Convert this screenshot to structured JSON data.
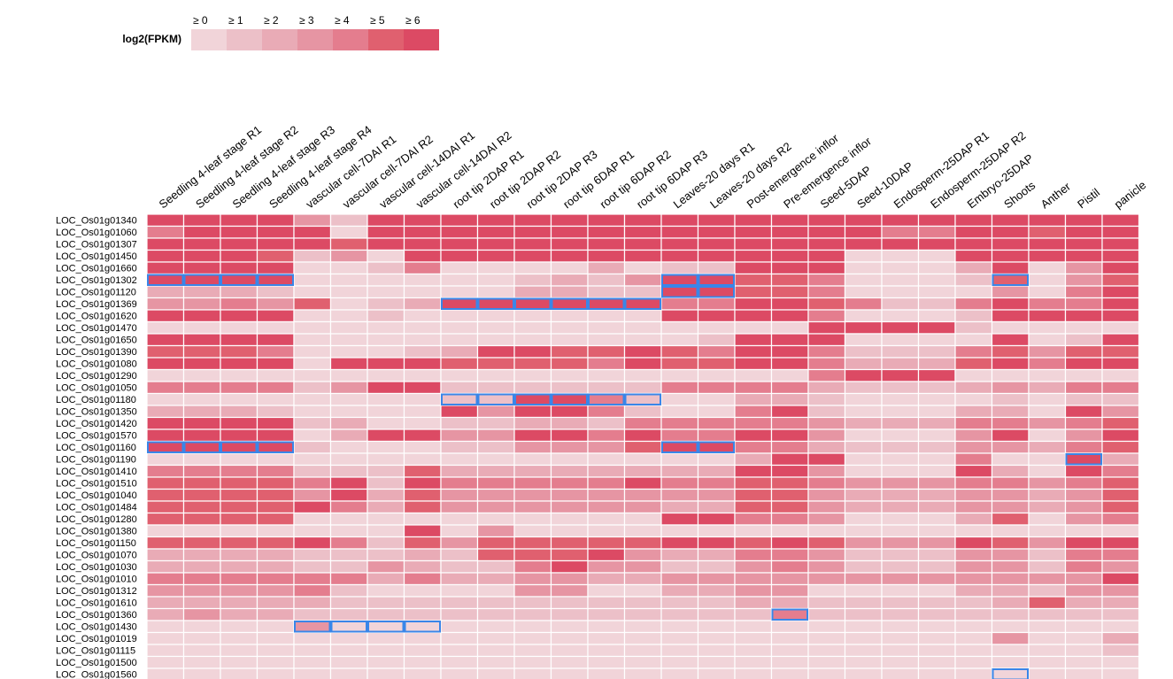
{
  "chart_data": {
    "type": "heatmap",
    "legend": {
      "title": "log2(FPKM)",
      "bins": [
        "≥ 0",
        "≥ 1",
        "≥ 2",
        "≥ 3",
        "≥ 4",
        "≥ 5",
        "≥ 6"
      ],
      "colors": [
        "#f1d4d9",
        "#ecc0c8",
        "#e9abb6",
        "#e695a3",
        "#e47d8e",
        "#e0606f",
        "#dc4a64"
      ]
    },
    "columns": [
      "Seedling 4-leaf stage R1",
      "Seedling 4-leaf stage R2",
      "Seedling 4-leaf stage R3",
      "Seedling 4-leaf stage R4",
      "vascular cell-7DAI R1",
      "vascular cell-7DAI R2",
      "vascular cell-14DAI R1",
      "vascular cell-14DAI R2",
      "root tip 2DAP R1",
      "root tip 2DAP R2",
      "root tip 2DAP R3",
      "root tip 6DAP R1",
      "root tip 6DAP R2",
      "root tip 6DAP R3",
      "Leaves-20 days R1",
      "Leaves-20 days R2",
      "Post-emergence inflor",
      "Pre-emergence inflor",
      "Seed-5DAP",
      "Seed-10DAP",
      "Endosperm-25DAP R1",
      "Endosperm-25DAP R2",
      "Embryo-25DAP",
      "Shoots",
      "Anther",
      "Pistil",
      "panicle"
    ],
    "rows": [
      {
        "gene": "LOC_Os01g01340",
        "levels": [
          6,
          6,
          6,
          6,
          3,
          1,
          6,
          6,
          6,
          6,
          6,
          6,
          6,
          6,
          6,
          6,
          6,
          6,
          6,
          6,
          6,
          6,
          6,
          6,
          6,
          6,
          6
        ]
      },
      {
        "gene": "LOC_Os01g01060",
        "levels": [
          4,
          6,
          6,
          6,
          6,
          0,
          6,
          6,
          6,
          6,
          6,
          6,
          6,
          6,
          6,
          6,
          6,
          6,
          6,
          6,
          4,
          4,
          6,
          6,
          5,
          6,
          6
        ]
      },
      {
        "gene": "LOC_Os01g01307",
        "levels": [
          6,
          6,
          6,
          6,
          6,
          5,
          6,
          6,
          6,
          6,
          6,
          6,
          6,
          6,
          6,
          6,
          6,
          6,
          6,
          6,
          6,
          6,
          6,
          6,
          6,
          6,
          6
        ]
      },
      {
        "gene": "LOC_Os01g01450",
        "levels": [
          6,
          6,
          6,
          5,
          1,
          3,
          0,
          6,
          6,
          6,
          6,
          6,
          6,
          6,
          6,
          6,
          6,
          6,
          6,
          0,
          0,
          0,
          6,
          6,
          6,
          6,
          6
        ]
      },
      {
        "gene": "LOC_Os01g01660",
        "levels": [
          6,
          6,
          6,
          6,
          0,
          0,
          1,
          4,
          0,
          0,
          0,
          0,
          2,
          0,
          1,
          1,
          6,
          6,
          6,
          0,
          0,
          0,
          2,
          6,
          0,
          3,
          6
        ]
      },
      {
        "gene": "LOC_Os01g01302",
        "levels": [
          6,
          6,
          6,
          6,
          0,
          0,
          0,
          0,
          0,
          0,
          1,
          2,
          1,
          3,
          6,
          6,
          5,
          5,
          4,
          0,
          0,
          0,
          1,
          5,
          0,
          3,
          5
        ]
      },
      {
        "gene": "LOC_Os01g01120",
        "levels": [
          2,
          2,
          2,
          1,
          0,
          0,
          0,
          0,
          0,
          0,
          2,
          2,
          1,
          1,
          6,
          6,
          5,
          5,
          4,
          0,
          0,
          0,
          0,
          3,
          0,
          4,
          6
        ]
      },
      {
        "gene": "LOC_Os01g01369",
        "levels": [
          3,
          3,
          4,
          3,
          5,
          0,
          1,
          2,
          6,
          6,
          6,
          6,
          6,
          6,
          4,
          4,
          6,
          6,
          5,
          4,
          1,
          1,
          4,
          6,
          4,
          4,
          6
        ]
      },
      {
        "gene": "LOC_Os01g01620",
        "levels": [
          6,
          6,
          6,
          6,
          0,
          0,
          1,
          0,
          0,
          0,
          0,
          0,
          0,
          0,
          6,
          6,
          6,
          6,
          4,
          0,
          0,
          0,
          1,
          6,
          6,
          6,
          6
        ]
      },
      {
        "gene": "LOC_Os01g01470",
        "levels": [
          0,
          0,
          0,
          0,
          0,
          0,
          0,
          0,
          0,
          0,
          0,
          0,
          0,
          0,
          0,
          0,
          0,
          0,
          6,
          6,
          6,
          6,
          1,
          0,
          0,
          0,
          0
        ]
      },
      {
        "gene": "LOC_Os01g01650",
        "levels": [
          6,
          6,
          6,
          6,
          0,
          0,
          0,
          0,
          0,
          0,
          0,
          0,
          0,
          0,
          0,
          1,
          6,
          6,
          6,
          0,
          0,
          0,
          0,
          6,
          0,
          1,
          6
        ]
      },
      {
        "gene": "LOC_Os01g01390",
        "levels": [
          5,
          5,
          5,
          4,
          0,
          0,
          0,
          1,
          2,
          6,
          6,
          5,
          5,
          6,
          5,
          4,
          6,
          6,
          4,
          1,
          1,
          1,
          4,
          5,
          3,
          5,
          5
        ]
      },
      {
        "gene": "LOC_Os01g01080",
        "levels": [
          6,
          6,
          6,
          6,
          0,
          6,
          6,
          6,
          5,
          5,
          5,
          5,
          4,
          6,
          5,
          5,
          6,
          6,
          4,
          2,
          2,
          2,
          5,
          6,
          4,
          6,
          6
        ]
      },
      {
        "gene": "LOC_Os01g01290",
        "levels": [
          0,
          0,
          0,
          0,
          0,
          0,
          0,
          0,
          0,
          0,
          0,
          0,
          0,
          0,
          0,
          0,
          0,
          0,
          4,
          6,
          6,
          6,
          0,
          0,
          0,
          0,
          0
        ]
      },
      {
        "gene": "LOC_Os01g01050",
        "levels": [
          4,
          4,
          4,
          4,
          1,
          3,
          6,
          6,
          1,
          1,
          1,
          1,
          1,
          1,
          4,
          4,
          4,
          4,
          2,
          1,
          1,
          1,
          2,
          3,
          2,
          4,
          4
        ]
      },
      {
        "gene": "LOC_Os01g01180",
        "levels": [
          0,
          0,
          0,
          0,
          0,
          0,
          0,
          0,
          1,
          1,
          6,
          6,
          4,
          1,
          0,
          0,
          2,
          2,
          1,
          0,
          0,
          0,
          0,
          1,
          0,
          1,
          1
        ]
      },
      {
        "gene": "LOC_Os01g01350",
        "levels": [
          2,
          2,
          2,
          1,
          0,
          0,
          0,
          0,
          6,
          3,
          6,
          6,
          4,
          1,
          0,
          0,
          4,
          6,
          1,
          0,
          0,
          0,
          2,
          2,
          0,
          6,
          3
        ]
      },
      {
        "gene": "LOC_Os01g01420",
        "levels": [
          6,
          6,
          6,
          6,
          1,
          2,
          0,
          0,
          1,
          1,
          2,
          2,
          1,
          4,
          4,
          4,
          4,
          4,
          3,
          2,
          2,
          2,
          4,
          4,
          3,
          4,
          5
        ]
      },
      {
        "gene": "LOC_Os01g01570",
        "levels": [
          6,
          6,
          6,
          6,
          0,
          2,
          6,
          6,
          3,
          3,
          6,
          6,
          4,
          6,
          4,
          4,
          6,
          6,
          3,
          0,
          0,
          0,
          3,
          6,
          0,
          3,
          6
        ]
      },
      {
        "gene": "LOC_Os01g01160",
        "levels": [
          6,
          6,
          6,
          6,
          1,
          0,
          0,
          0,
          1,
          1,
          3,
          3,
          3,
          5,
          6,
          6,
          4,
          4,
          2,
          1,
          1,
          1,
          3,
          3,
          2,
          4,
          5
        ]
      },
      {
        "gene": "LOC_Os01g01190",
        "levels": [
          0,
          0,
          0,
          0,
          0,
          0,
          0,
          0,
          0,
          0,
          0,
          0,
          0,
          0,
          0,
          0,
          2,
          6,
          6,
          0,
          0,
          0,
          4,
          0,
          0,
          6,
          2
        ]
      },
      {
        "gene": "LOC_Os01g01410",
        "levels": [
          4,
          4,
          4,
          4,
          1,
          1,
          1,
          5,
          2,
          2,
          2,
          2,
          2,
          2,
          2,
          2,
          6,
          6,
          3,
          0,
          0,
          0,
          6,
          2,
          0,
          6,
          4
        ]
      },
      {
        "gene": "LOC_Os01g01510",
        "levels": [
          5,
          5,
          5,
          5,
          4,
          6,
          1,
          6,
          4,
          4,
          4,
          4,
          4,
          6,
          4,
          4,
          5,
          5,
          4,
          3,
          3,
          3,
          4,
          4,
          3,
          4,
          5
        ]
      },
      {
        "gene": "LOC_Os01g01040",
        "levels": [
          5,
          5,
          5,
          5,
          3,
          6,
          2,
          5,
          3,
          3,
          3,
          3,
          3,
          3,
          3,
          3,
          5,
          5,
          3,
          2,
          2,
          2,
          3,
          3,
          2,
          3,
          5
        ]
      },
      {
        "gene": "LOC_Os01g01484",
        "levels": [
          5,
          5,
          5,
          5,
          6,
          4,
          2,
          5,
          3,
          3,
          3,
          3,
          3,
          3,
          2,
          2,
          5,
          5,
          3,
          2,
          2,
          2,
          3,
          3,
          2,
          3,
          5
        ]
      },
      {
        "gene": "LOC_Os01g01280",
        "levels": [
          5,
          5,
          5,
          5,
          0,
          0,
          0,
          0,
          0,
          0,
          0,
          0,
          0,
          0,
          6,
          6,
          4,
          4,
          3,
          0,
          0,
          0,
          2,
          5,
          0,
          3,
          4
        ]
      },
      {
        "gene": "LOC_Os01g01380",
        "levels": [
          0,
          0,
          0,
          0,
          0,
          0,
          0,
          6,
          0,
          3,
          0,
          0,
          0,
          0,
          0,
          0,
          0,
          0,
          0,
          0,
          0,
          0,
          0,
          0,
          0,
          0,
          0
        ]
      },
      {
        "gene": "LOC_Os01g01150",
        "levels": [
          5,
          5,
          5,
          5,
          6,
          4,
          1,
          5,
          3,
          5,
          5,
          5,
          5,
          5,
          6,
          6,
          5,
          6,
          5,
          3,
          3,
          3,
          6,
          5,
          3,
          6,
          6
        ]
      },
      {
        "gene": "LOC_Os01g01070",
        "levels": [
          2,
          2,
          2,
          2,
          1,
          1,
          1,
          2,
          1,
          5,
          5,
          5,
          6,
          3,
          2,
          2,
          4,
          4,
          3,
          1,
          1,
          1,
          3,
          3,
          1,
          4,
          4
        ]
      },
      {
        "gene": "LOC_Os01g01030",
        "levels": [
          2,
          2,
          2,
          2,
          1,
          1,
          3,
          2,
          1,
          1,
          4,
          6,
          3,
          3,
          1,
          1,
          3,
          4,
          3,
          1,
          1,
          1,
          3,
          3,
          1,
          4,
          3
        ]
      },
      {
        "gene": "LOC_Os01g01010",
        "levels": [
          4,
          4,
          4,
          4,
          4,
          4,
          2,
          4,
          2,
          2,
          3,
          3,
          2,
          2,
          3,
          3,
          3,
          3,
          3,
          3,
          3,
          3,
          3,
          3,
          3,
          3,
          6
        ]
      },
      {
        "gene": "LOC_Os01g01312",
        "levels": [
          3,
          3,
          3,
          3,
          4,
          1,
          0,
          0,
          0,
          0,
          3,
          3,
          0,
          0,
          2,
          2,
          3,
          3,
          0,
          0,
          0,
          0,
          2,
          2,
          1,
          3,
          3
        ]
      },
      {
        "gene": "LOC_Os01g01610",
        "levels": [
          2,
          2,
          2,
          2,
          2,
          1,
          1,
          1,
          1,
          1,
          1,
          1,
          1,
          1,
          1,
          1,
          2,
          2,
          1,
          1,
          1,
          1,
          1,
          2,
          5,
          2,
          2
        ]
      },
      {
        "gene": "LOC_Os01g01360",
        "levels": [
          2,
          3,
          2,
          2,
          1,
          1,
          1,
          1,
          1,
          1,
          1,
          1,
          1,
          1,
          1,
          1,
          1,
          4,
          1,
          1,
          1,
          1,
          1,
          1,
          1,
          1,
          1
        ]
      },
      {
        "gene": "LOC_Os01g01430",
        "levels": [
          0,
          0,
          0,
          0,
          3,
          0,
          0,
          0,
          0,
          0,
          0,
          0,
          0,
          0,
          0,
          0,
          0,
          0,
          0,
          0,
          0,
          0,
          0,
          0,
          0,
          0,
          0
        ]
      },
      {
        "gene": "LOC_Os01g01019",
        "levels": [
          0,
          0,
          0,
          0,
          0,
          0,
          0,
          0,
          0,
          0,
          0,
          0,
          0,
          0,
          0,
          0,
          0,
          0,
          0,
          0,
          0,
          0,
          0,
          3,
          0,
          0,
          2
        ]
      },
      {
        "gene": "LOC_Os01g01115",
        "levels": [
          0,
          0,
          0,
          0,
          0,
          0,
          0,
          0,
          0,
          0,
          0,
          0,
          0,
          0,
          0,
          0,
          0,
          0,
          0,
          0,
          0,
          0,
          0,
          0,
          0,
          0,
          1
        ]
      },
      {
        "gene": "LOC_Os01g01500",
        "levels": [
          0,
          0,
          0,
          0,
          0,
          0,
          0,
          0,
          0,
          0,
          0,
          0,
          0,
          0,
          0,
          0,
          0,
          0,
          0,
          0,
          0,
          0,
          0,
          0,
          0,
          0,
          0
        ]
      },
      {
        "gene": "LOC_Os01g01560",
        "levels": [
          0,
          0,
          0,
          0,
          0,
          0,
          0,
          0,
          0,
          0,
          0,
          0,
          0,
          0,
          0,
          0,
          0,
          0,
          0,
          0,
          0,
          0,
          0,
          0,
          0,
          0,
          0
        ]
      }
    ],
    "highlighted_cells": [
      [
        5,
        0
      ],
      [
        5,
        1
      ],
      [
        5,
        2
      ],
      [
        5,
        3
      ],
      [
        5,
        14
      ],
      [
        5,
        15
      ],
      [
        5,
        23
      ],
      [
        6,
        14
      ],
      [
        6,
        15
      ],
      [
        7,
        8
      ],
      [
        7,
        9
      ],
      [
        7,
        10
      ],
      [
        7,
        11
      ],
      [
        7,
        12
      ],
      [
        7,
        13
      ],
      [
        15,
        8
      ],
      [
        15,
        9
      ],
      [
        15,
        10
      ],
      [
        15,
        11
      ],
      [
        15,
        12
      ],
      [
        15,
        13
      ],
      [
        19,
        0
      ],
      [
        19,
        1
      ],
      [
        19,
        2
      ],
      [
        19,
        3
      ],
      [
        19,
        14
      ],
      [
        19,
        15
      ],
      [
        20,
        25
      ],
      [
        33,
        17
      ],
      [
        34,
        4
      ],
      [
        34,
        5
      ],
      [
        34,
        6
      ],
      [
        34,
        7
      ],
      [
        38,
        23
      ]
    ],
    "highlight_color": "#3a86e8"
  }
}
